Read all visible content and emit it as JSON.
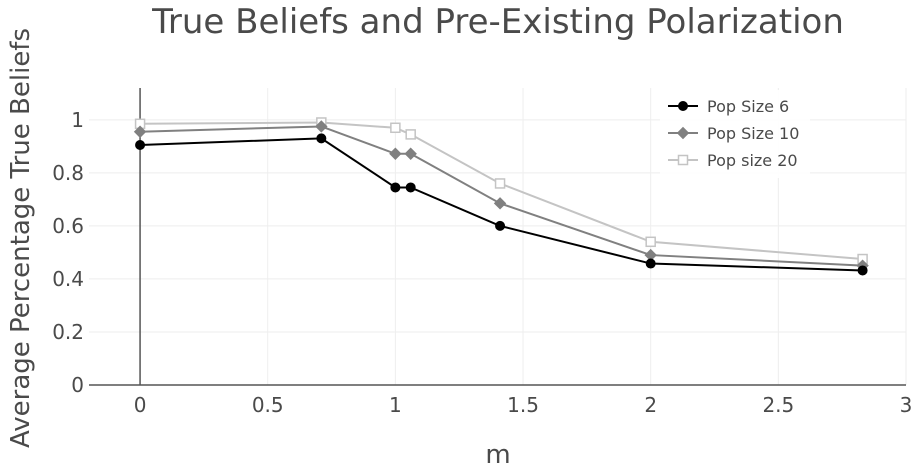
{
  "chart_data": {
    "type": "line",
    "title": "True Beliefs and Pre-Existing Polarization",
    "xlabel": "m",
    "ylabel": "Average Percentage True Beliefs",
    "xlim": [
      -0.2,
      3
    ],
    "ylim": [
      0,
      1.12
    ],
    "xticks": [
      0,
      0.5,
      1,
      1.5,
      2,
      2.5,
      3
    ],
    "xtick_labels": [
      "0",
      "0.5",
      "1",
      "1.5",
      "2",
      "2.5",
      "3"
    ],
    "yticks": [
      0,
      0.2,
      0.4,
      0.6,
      0.8,
      1
    ],
    "ytick_labels": [
      "0",
      "0.2",
      "0.4",
      "0.6",
      "0.8",
      "1"
    ],
    "grid": true,
    "legend_position": "top-right",
    "series": [
      {
        "name": "Pop Size 6",
        "color": "#000000",
        "marker": "circle",
        "x": [
          0,
          0.71,
          1.0,
          1.06,
          1.41,
          2.0,
          2.83
        ],
        "y": [
          0.905,
          0.93,
          0.745,
          0.745,
          0.6,
          0.458,
          0.432
        ]
      },
      {
        "name": "Pop Size 10",
        "color": "#808080",
        "marker": "diamond",
        "x": [
          0,
          0.71,
          1.0,
          1.06,
          1.41,
          2.0,
          2.83
        ],
        "y": [
          0.955,
          0.975,
          0.872,
          0.872,
          0.685,
          0.49,
          0.45
        ]
      },
      {
        "name": "Pop size 20",
        "color": "#c4c4c4",
        "marker": "square-open",
        "x": [
          0,
          0.71,
          1.0,
          1.06,
          1.41,
          2.0,
          2.83
        ],
        "y": [
          0.985,
          0.99,
          0.97,
          0.945,
          0.76,
          0.54,
          0.475
        ]
      }
    ]
  }
}
